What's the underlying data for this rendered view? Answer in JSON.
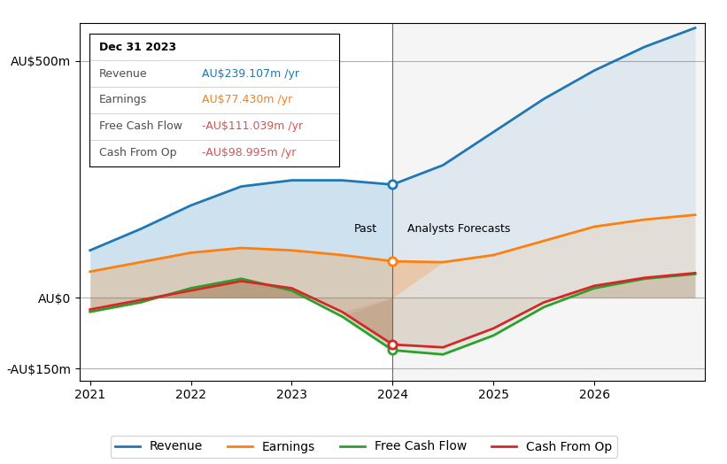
{
  "chart_data": {
    "type": "line",
    "x": [
      2021,
      2021.5,
      2022,
      2022.5,
      2023,
      2023.5,
      2024,
      2024.5,
      2025,
      2025.5,
      2026,
      2026.5,
      2027
    ],
    "series": [
      {
        "name": "Revenue",
        "values": [
          100,
          145,
          195,
          235,
          248,
          248,
          239,
          280,
          350,
          420,
          480,
          530,
          570
        ]
      },
      {
        "name": "Earnings",
        "values": [
          55,
          75,
          95,
          105,
          100,
          90,
          77,
          75,
          90,
          120,
          150,
          165,
          175
        ]
      },
      {
        "name": "Free Cash Flow",
        "values": [
          -30,
          -10,
          20,
          40,
          15,
          -40,
          -111,
          -120,
          -80,
          -20,
          20,
          40,
          50
        ]
      },
      {
        "name": "Cash From Op",
        "values": [
          -25,
          -5,
          15,
          35,
          20,
          -30,
          -99,
          -105,
          -65,
          -10,
          25,
          42,
          52
        ]
      }
    ],
    "xlim": [
      2020.9,
      2027.1
    ],
    "xticks": [
      2021,
      2022,
      2023,
      2024,
      2025,
      2026
    ],
    "ylim": [
      -175,
      580
    ],
    "yticks": [
      {
        "value": -150,
        "label": "-AU$150m"
      },
      {
        "value": 0,
        "label": "AU$0"
      },
      {
        "value": 500,
        "label": "AU$500m"
      }
    ],
    "grid": "y",
    "legend": "lower center",
    "vertical_line": 2024,
    "annotations": {
      "past_label": "Past",
      "forecast_label": "Analysts Forecasts",
      "tooltip": {
        "title": "Dec 31 2023",
        "rows": [
          {
            "label": "Revenue",
            "value": "AU$239.107m /yr"
          },
          {
            "label": "Earnings",
            "value": "AU$77.430m /yr"
          },
          {
            "label": "Free Cash Flow",
            "value": "-AU$111.039m /yr",
            "color": "#e05050"
          },
          {
            "label": "Cash From Op",
            "value": "-AU$98.995m /yr",
            "color": "#e05050"
          }
        ]
      }
    }
  }
}
